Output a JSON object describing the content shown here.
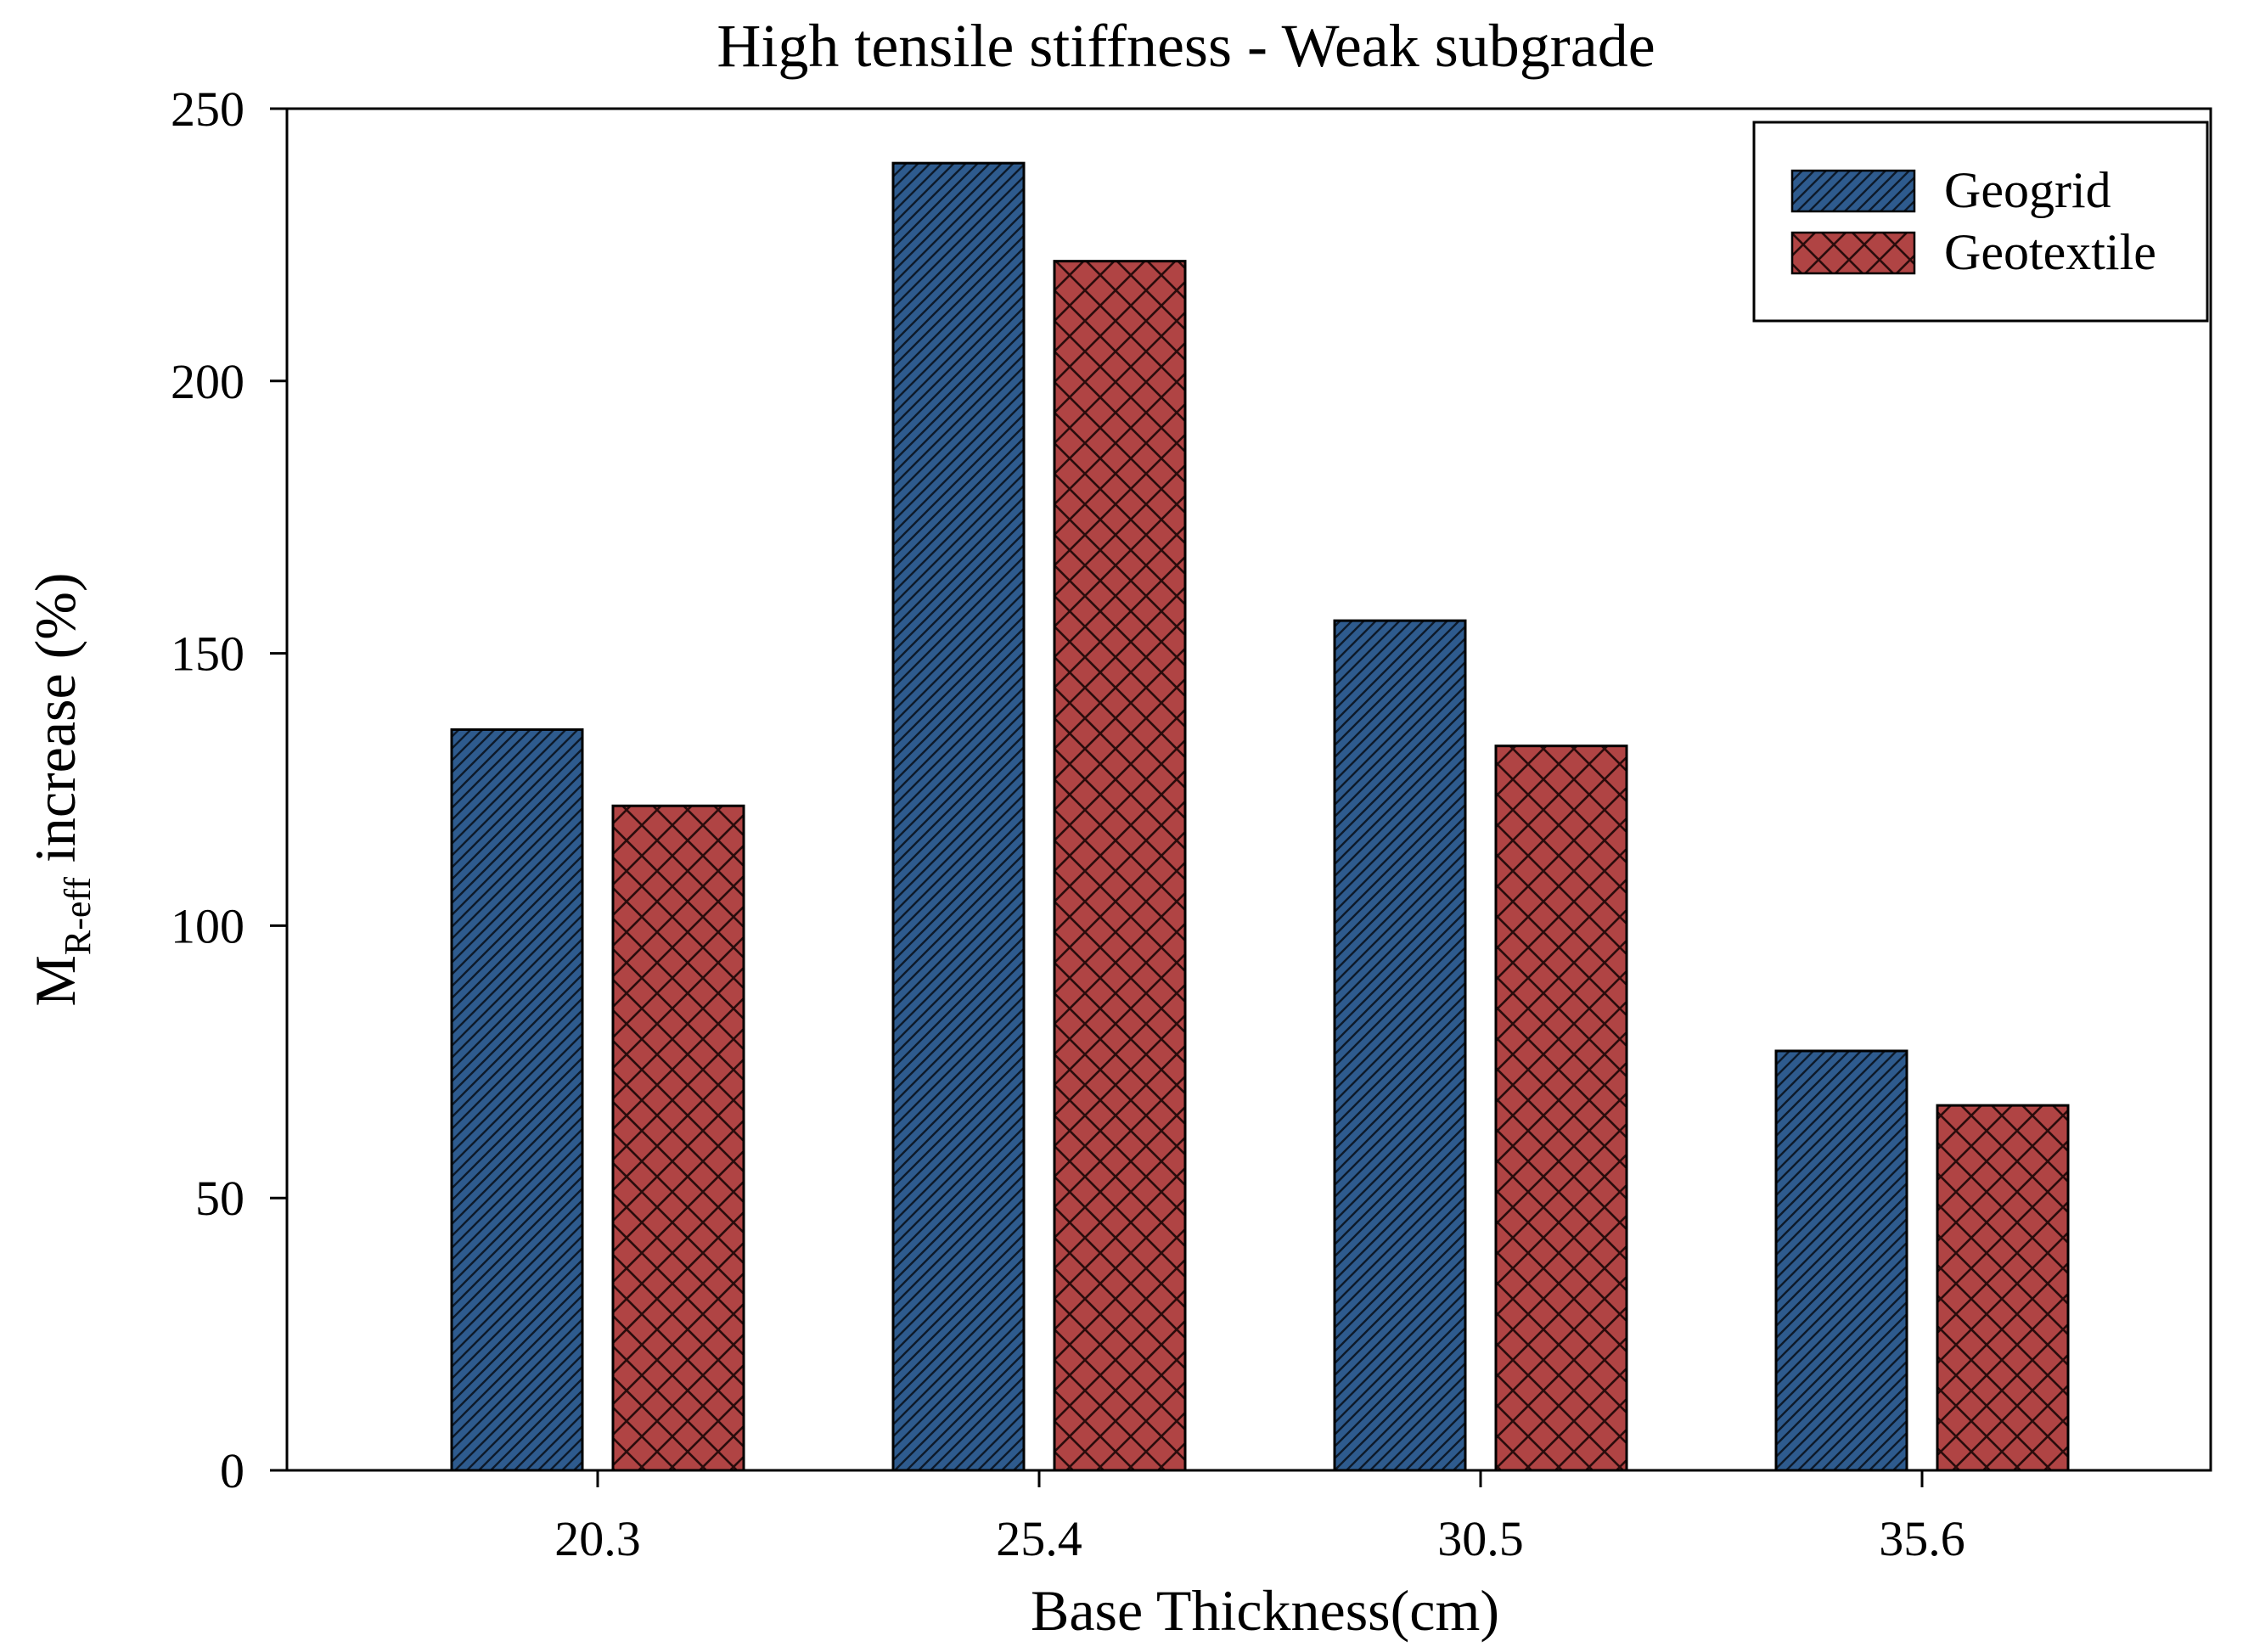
{
  "chart_data": {
    "type": "bar",
    "title": "High tensile stiffness - Weak subgrade",
    "xlabel": "Base Thickness(cm)",
    "ylabel": {
      "main": "M",
      "subscript": "R-eff",
      "rest": " increase (%)"
    },
    "categories": [
      "20.3",
      "25.4",
      "30.5",
      "35.6"
    ],
    "series": [
      {
        "name": "Geogrid",
        "color": "#2e5b8e",
        "pattern": "diagonal-hatch",
        "values": [
          136,
          240,
          156,
          77
        ]
      },
      {
        "name": "Geotextile",
        "color": "#b04444",
        "pattern": "cross-hatch",
        "values": [
          122,
          222,
          133,
          67
        ]
      }
    ],
    "ylim": [
      0,
      250
    ],
    "yticks": [
      "0",
      "50",
      "100",
      "150",
      "200",
      "250"
    ],
    "grid": false,
    "legend_position": "top-right"
  }
}
